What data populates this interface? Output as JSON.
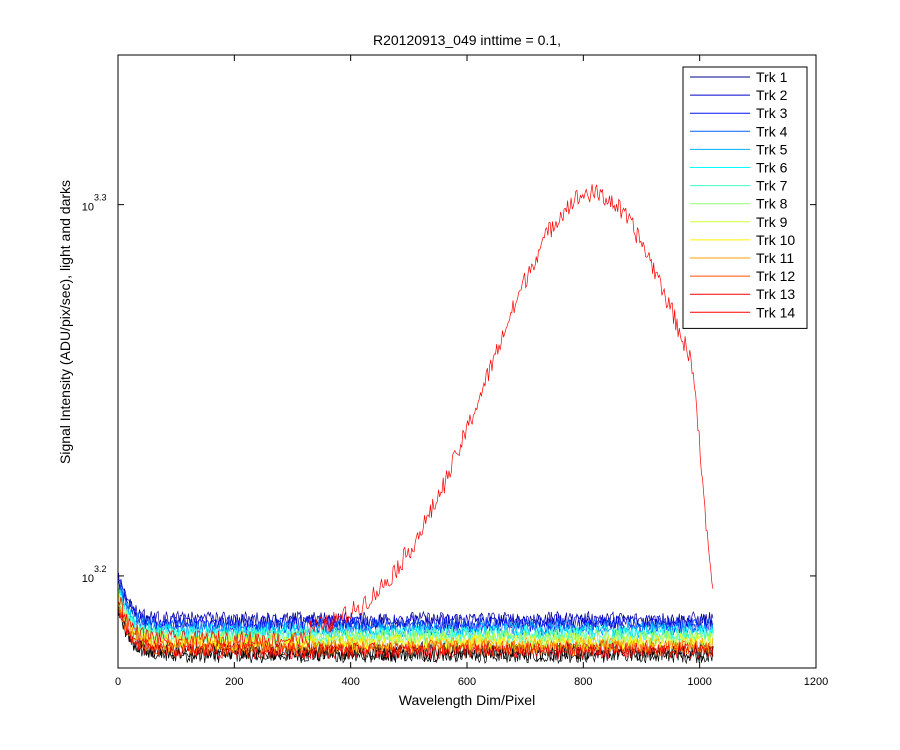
{
  "chart_data": {
    "type": "line",
    "title": "R20120913_049 inttime = 0.1,",
    "xlabel": "Wavelength Dim/Pixel",
    "ylabel": "Signal Intensity (ADU/pix/sec), light and darks",
    "xlim": [
      0,
      1200
    ],
    "ylim": [
      3.1752,
      3.3403
    ],
    "y_scale": "log10",
    "x_ticks": [
      0,
      200,
      400,
      600,
      800,
      1000,
      1200
    ],
    "y_ticks": [
      {
        "base": "10",
        "exp": "3.2",
        "value": 3.2
      },
      {
        "base": "10",
        "exp": "3.3",
        "value": 3.3
      }
    ],
    "grid": false,
    "legend_position": "top-right",
    "x_range_of_data": [
      1,
      1024
    ],
    "series": [
      {
        "name": "Trk 1",
        "color": "#00008f",
        "baseline_log10": 3.1882,
        "noise": 0.0022
      },
      {
        "name": "Trk 2",
        "color": "#0000cf",
        "baseline_log10": 3.1875,
        "noise": 0.0022
      },
      {
        "name": "Trk 3",
        "color": "#0010ff",
        "baseline_log10": 3.1868,
        "noise": 0.0022
      },
      {
        "name": "Trk 4",
        "color": "#0060ff",
        "baseline_log10": 3.1861,
        "noise": 0.0022
      },
      {
        "name": "Trk 5",
        "color": "#00afff",
        "baseline_log10": 3.1854,
        "noise": 0.0022
      },
      {
        "name": "Trk 6",
        "color": "#00ffff",
        "baseline_log10": 3.1847,
        "noise": 0.0022
      },
      {
        "name": "Trk 7",
        "color": "#40ffbf",
        "baseline_log10": 3.184,
        "noise": 0.0022
      },
      {
        "name": "Trk 8",
        "color": "#8fff70",
        "baseline_log10": 3.1833,
        "noise": 0.0022
      },
      {
        "name": "Trk 9",
        "color": "#cfff30",
        "baseline_log10": 3.1826,
        "noise": 0.0022
      },
      {
        "name": "Trk 10",
        "color": "#ffef00",
        "baseline_log10": 3.1819,
        "noise": 0.0022
      },
      {
        "name": "Trk 11",
        "color": "#ffa000",
        "baseline_log10": 3.1812,
        "noise": 0.0022
      },
      {
        "name": "Trk 12",
        "color": "#ff5000",
        "baseline_log10": 3.1805,
        "noise": 0.0022
      },
      {
        "name": "Trk 13",
        "color": "#ff0000",
        "baseline_log10": 3.1798,
        "noise": 0.0022
      },
      {
        "name": "Trk 14",
        "color": "#ff0000",
        "baseline_log10": 3.183,
        "noise": 0.0022,
        "peak": {
          "center_x": 815,
          "peak_log10": 3.303,
          "sigma": 175,
          "start_x": 330,
          "end_log10": 3.1935
        }
      }
    ],
    "dark_frames": {
      "color": "#000000",
      "baseline_log10": 3.179,
      "noise": 0.0025
    }
  }
}
